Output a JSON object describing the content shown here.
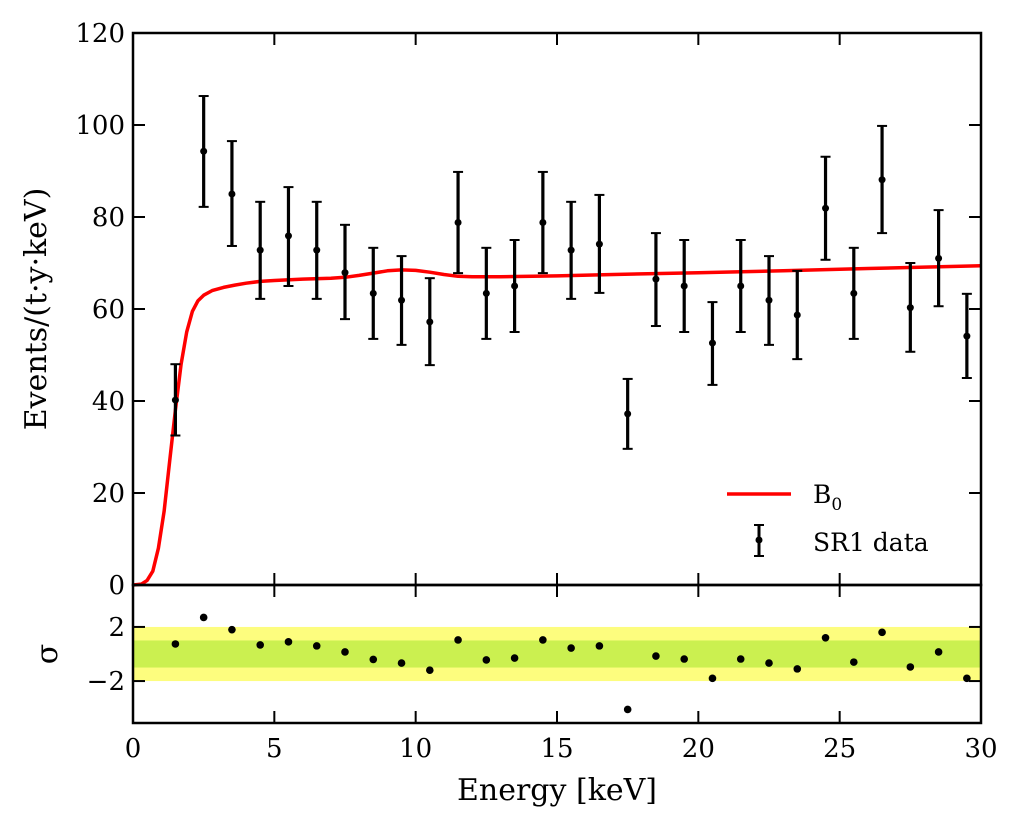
{
  "chart_data": [
    {
      "type": "scatter",
      "panel": "main",
      "title": "",
      "xlabel": "",
      "ylabel": "Events/(t·y·keV)",
      "xlim": [
        0,
        30
      ],
      "ylim": [
        0,
        120
      ],
      "xticks": [
        0,
        5,
        10,
        15,
        20,
        25,
        30
      ],
      "yticks": [
        0,
        20,
        40,
        60,
        80,
        100,
        120
      ],
      "grid": false,
      "legend": {
        "placement": "lower-right",
        "entries": [
          {
            "label": "B",
            "subscript": "0",
            "style": "line",
            "color": "#ff0000"
          },
          {
            "label": "SR1 data",
            "style": "errorbar",
            "color": "#000000"
          }
        ]
      },
      "series": [
        {
          "name": "SR1 data",
          "kind": "errorbar",
          "color": "#000000",
          "x": [
            1.5,
            2.5,
            3.5,
            4.5,
            5.5,
            6.5,
            7.5,
            8.5,
            9.5,
            10.5,
            11.5,
            12.5,
            13.5,
            14.5,
            15.5,
            16.5,
            17.5,
            18.5,
            19.5,
            20.5,
            21.5,
            22.5,
            23.5,
            24.5,
            25.5,
            26.5,
            27.5,
            28.5,
            29.5
          ],
          "y": [
            40.2,
            94.3,
            85.0,
            72.8,
            75.9,
            72.8,
            67.9,
            63.4,
            61.9,
            57.2,
            78.8,
            63.4,
            65.0,
            78.8,
            72.8,
            74.1,
            37.2,
            66.5,
            65.0,
            52.6,
            65.0,
            61.9,
            58.7,
            81.9,
            63.4,
            88.1,
            60.3,
            71.0,
            54.1
          ],
          "y_low": [
            32.5,
            82.2,
            73.7,
            62.2,
            65.0,
            62.2,
            57.8,
            53.5,
            52.2,
            47.8,
            67.8,
            53.5,
            55.0,
            67.8,
            62.2,
            63.5,
            29.6,
            56.3,
            55.0,
            43.5,
            55.0,
            52.2,
            49.1,
            70.7,
            53.5,
            76.5,
            50.7,
            60.6,
            45.0
          ],
          "y_high": [
            48.0,
            106.3,
            96.5,
            83.3,
            86.5,
            83.3,
            78.3,
            73.3,
            71.5,
            66.7,
            89.8,
            73.3,
            75.0,
            89.8,
            83.3,
            84.8,
            44.8,
            76.5,
            75.0,
            61.5,
            75.0,
            71.5,
            68.3,
            93.1,
            73.3,
            99.8,
            70.0,
            81.5,
            63.3
          ]
        },
        {
          "name": "B0",
          "kind": "line",
          "color": "#ff0000",
          "x": [
            0.0,
            0.3,
            0.5,
            0.7,
            0.9,
            1.1,
            1.3,
            1.5,
            1.7,
            1.9,
            2.1,
            2.3,
            2.5,
            2.8,
            3.2,
            3.6,
            4.0,
            4.5,
            5.0,
            6.0,
            7.0,
            7.5,
            8.0,
            8.5,
            9.0,
            9.5,
            10.0,
            10.5,
            11.0,
            11.5,
            12.0,
            12.5,
            13.0,
            15.0,
            17.0,
            20.0,
            23.0,
            26.0,
            28.0,
            30.0
          ],
          "y": [
            0.0,
            0.2,
            1.0,
            3.0,
            8.0,
            16.0,
            27.0,
            38.0,
            48.0,
            55.0,
            59.5,
            61.8,
            63.0,
            64.0,
            64.7,
            65.2,
            65.6,
            66.0,
            66.2,
            66.5,
            66.7,
            66.9,
            67.3,
            67.8,
            68.3,
            68.5,
            68.4,
            68.0,
            67.5,
            67.1,
            67.0,
            67.0,
            67.0,
            67.2,
            67.5,
            67.9,
            68.3,
            68.8,
            69.1,
            69.4
          ]
        }
      ]
    },
    {
      "type": "scatter",
      "panel": "residual",
      "xlabel": "Energy [keV]",
      "ylabel": "σ",
      "xlim": [
        0,
        30
      ],
      "ylim": [
        -5.1,
        5.1
      ],
      "xticks": [
        0,
        5,
        10,
        15,
        20,
        25,
        30
      ],
      "yticks": [
        2,
        -2
      ],
      "ytick_labels": [
        "2",
        "−2"
      ],
      "bands": [
        {
          "range": [
            -2,
            2
          ],
          "color": "#fdfd7e",
          "name": "2-sigma band"
        },
        {
          "range": [
            -1,
            1
          ],
          "color": "#cbf050",
          "name": "1-sigma band"
        }
      ],
      "series": [
        {
          "name": "residuals",
          "color": "#000000",
          "x": [
            1.5,
            2.5,
            3.5,
            4.5,
            5.5,
            6.5,
            7.5,
            8.5,
            9.5,
            10.5,
            11.5,
            12.5,
            13.5,
            14.5,
            15.5,
            16.5,
            17.5,
            18.5,
            19.5,
            20.5,
            21.5,
            22.5,
            23.5,
            24.5,
            25.5,
            26.5,
            27.5,
            28.5,
            29.5
          ],
          "y": [
            0.74,
            2.7,
            1.8,
            0.67,
            0.9,
            0.6,
            0.15,
            -0.4,
            -0.67,
            -1.2,
            1.04,
            -0.44,
            -0.3,
            1.04,
            0.44,
            0.6,
            -4.1,
            -0.15,
            -0.37,
            -1.8,
            -0.37,
            -0.67,
            -1.1,
            1.2,
            -0.6,
            1.6,
            -0.96,
            0.15,
            -1.8
          ]
        }
      ]
    }
  ]
}
